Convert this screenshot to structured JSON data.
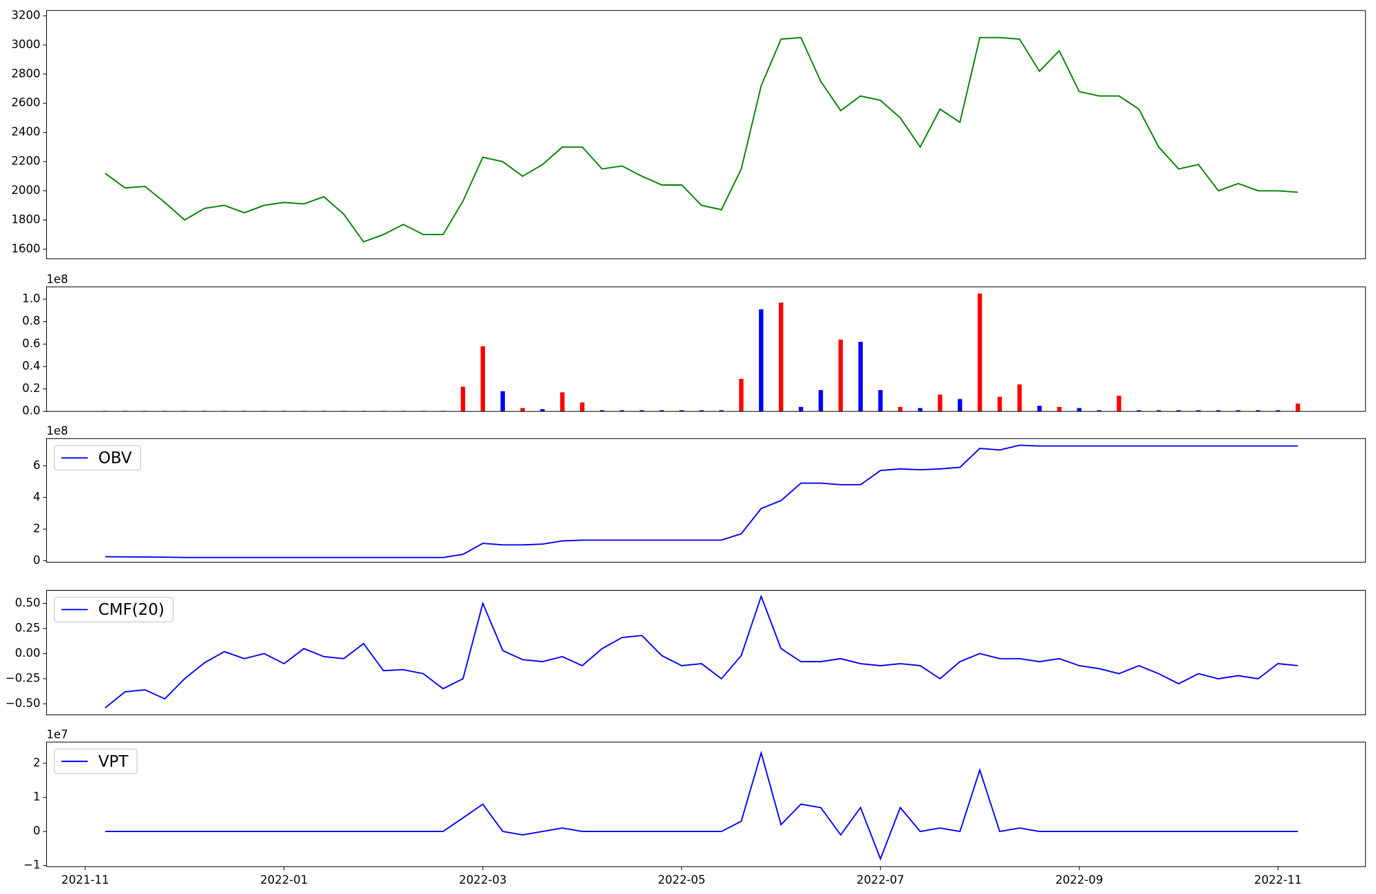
{
  "chart_data": [
    {
      "type": "line",
      "color": "green",
      "x": [
        0.2,
        0.4,
        0.6,
        0.8,
        1.0,
        1.2,
        1.4,
        1.6,
        1.8,
        2.0,
        2.2,
        2.4,
        2.6,
        2.8,
        3.0,
        3.2,
        3.4,
        3.6,
        3.8,
        4.0,
        4.2,
        4.4,
        4.6,
        4.8,
        5.0,
        5.2,
        5.4,
        5.6,
        5.8,
        6.0,
        6.2,
        6.4,
        6.6,
        6.8,
        7.0,
        7.2,
        7.4,
        7.6,
        7.8,
        8.0,
        8.2,
        8.4,
        8.6,
        8.8,
        9.0,
        9.2,
        9.4,
        9.6,
        9.8,
        10.0,
        10.2,
        10.4,
        10.6,
        10.8,
        11.0,
        11.2,
        11.4,
        11.6,
        11.8,
        12.0,
        12.2
      ],
      "values": [
        2120,
        2020,
        2030,
        1920,
        1800,
        1880,
        1900,
        1850,
        1900,
        1920,
        1910,
        1960,
        1840,
        1650,
        1700,
        1770,
        1700,
        1700,
        1930,
        2230,
        2200,
        2100,
        2180,
        2300,
        2300,
        2150,
        2170,
        2100,
        2040,
        2040,
        1900,
        1870,
        2150,
        2720,
        3040,
        3050,
        2750,
        2550,
        2650,
        2620,
        2500,
        2300,
        2560,
        2470,
        3050,
        3050,
        3040,
        2820,
        2960,
        2680,
        2650,
        2650,
        2560,
        2300,
        2150,
        2180,
        2000,
        2050,
        2000,
        2000,
        1990
      ],
      "xlim": [
        -0.39,
        12.88
      ],
      "ylim": [
        1534,
        3236
      ],
      "yticks": [
        1600,
        1800,
        2000,
        2200,
        2400,
        2600,
        2800,
        3000,
        3200
      ]
    },
    {
      "type": "bar",
      "y_offset_label": "1e8",
      "x": [
        0.2,
        0.4,
        0.6,
        0.8,
        1.0,
        1.2,
        1.4,
        1.6,
        1.8,
        2.0,
        2.2,
        2.4,
        2.6,
        2.8,
        3.0,
        3.2,
        3.4,
        3.6,
        3.8,
        4.0,
        4.2,
        4.4,
        4.6,
        4.8,
        5.0,
        5.2,
        5.4,
        5.6,
        5.8,
        6.0,
        6.2,
        6.4,
        6.6,
        6.8,
        7.0,
        7.2,
        7.4,
        7.6,
        7.8,
        8.0,
        8.2,
        8.4,
        8.6,
        8.8,
        9.0,
        9.2,
        9.4,
        9.6,
        9.8,
        10.0,
        10.2,
        10.4,
        10.6,
        10.8,
        11.0,
        11.2,
        11.4,
        11.6,
        11.8,
        12.0,
        12.2
      ],
      "values": [
        0.005,
        0.005,
        0.005,
        0.005,
        0.005,
        0.005,
        0.005,
        0.005,
        0.005,
        0.005,
        0.005,
        0.005,
        0.005,
        0.005,
        0.005,
        0.005,
        0.005,
        0.005,
        0.22,
        0.58,
        0.18,
        0.03,
        0.02,
        0.17,
        0.08,
        0.01,
        0.01,
        0.01,
        0.01,
        0.01,
        0.01,
        0.01,
        0.29,
        0.91,
        0.97,
        0.04,
        0.19,
        0.64,
        0.62,
        0.19,
        0.04,
        0.03,
        0.15,
        0.11,
        1.05,
        0.13,
        0.24,
        0.05,
        0.04,
        0.03,
        0.01,
        0.14,
        0.01,
        0.01,
        0.01,
        0.01,
        0.01,
        0.01,
        0.01,
        0.01,
        0.07
      ],
      "colors": [
        "red",
        "red",
        "red",
        "red",
        "red",
        "red",
        "red",
        "red",
        "red",
        "red",
        "red",
        "red",
        "red",
        "red",
        "red",
        "red",
        "red",
        "red",
        "red",
        "red",
        "blue",
        "red",
        "blue",
        "red",
        "red",
        "blue",
        "blue",
        "blue",
        "blue",
        "blue",
        "blue",
        "blue",
        "red",
        "blue",
        "red",
        "blue",
        "blue",
        "red",
        "blue",
        "blue",
        "red",
        "blue",
        "red",
        "blue",
        "red",
        "red",
        "red",
        "blue",
        "red",
        "blue",
        "blue",
        "red",
        "blue",
        "blue",
        "blue",
        "blue",
        "blue",
        "blue",
        "blue",
        "blue",
        "red"
      ],
      "xlim": [
        -0.39,
        12.88
      ],
      "ylim": [
        0,
        1.11
      ],
      "yticks": [
        {
          "value": 0,
          "label": "0.0"
        },
        0.2,
        0.4,
        0.6,
        0.8,
        {
          "value": 1,
          "label": "1.0"
        }
      ]
    },
    {
      "type": "line",
      "y_offset_label": "1e8",
      "legend": "upper left",
      "x": [
        0.2,
        0.4,
        0.6,
        0.8,
        1.0,
        1.2,
        1.4,
        1.6,
        1.8,
        2.0,
        2.2,
        2.4,
        2.6,
        2.8,
        3.0,
        3.2,
        3.4,
        3.6,
        3.8,
        4.0,
        4.2,
        4.4,
        4.6,
        4.8,
        5.0,
        5.2,
        5.4,
        5.6,
        5.8,
        6.0,
        6.2,
        6.4,
        6.6,
        6.8,
        7.0,
        7.2,
        7.4,
        7.6,
        7.8,
        8.0,
        8.2,
        8.4,
        8.6,
        8.8,
        9.0,
        9.2,
        9.4,
        9.6,
        9.8,
        10.0,
        10.2,
        10.4,
        10.6,
        10.8,
        11.0,
        11.2,
        11.4,
        11.6,
        11.8,
        12.0,
        12.2
      ],
      "series": [
        {
          "name": "OBV",
          "color": "blue",
          "values": [
            0.25,
            0.24,
            0.23,
            0.22,
            0.2,
            0.2,
            0.2,
            0.2,
            0.2,
            0.2,
            0.2,
            0.2,
            0.2,
            0.2,
            0.2,
            0.2,
            0.2,
            0.2,
            0.4,
            1.1,
            1.0,
            1.0,
            1.05,
            1.25,
            1.3,
            1.3,
            1.3,
            1.3,
            1.3,
            1.3,
            1.3,
            1.3,
            1.7,
            3.3,
            3.8,
            4.9,
            4.9,
            4.8,
            4.8,
            5.7,
            5.8,
            5.75,
            5.8,
            5.9,
            7.1,
            7.0,
            7.3,
            7.25,
            7.25,
            7.25,
            7.25,
            7.25,
            7.25,
            7.25,
            7.25,
            7.25,
            7.25,
            7.25,
            7.25,
            7.25,
            7.25
          ]
        }
      ],
      "xlim": [
        -0.39,
        12.88
      ],
      "ylim": [
        -0.1,
        7.72
      ],
      "yticks": [
        0,
        2,
        4,
        6
      ]
    },
    {
      "type": "line",
      "legend": "upper left",
      "x": [
        0.2,
        0.4,
        0.6,
        0.8,
        1.0,
        1.2,
        1.4,
        1.6,
        1.8,
        2.0,
        2.2,
        2.4,
        2.6,
        2.8,
        3.0,
        3.2,
        3.4,
        3.6,
        3.8,
        4.0,
        4.2,
        4.4,
        4.6,
        4.8,
        5.0,
        5.2,
        5.4,
        5.6,
        5.8,
        6.0,
        6.2,
        6.4,
        6.6,
        6.8,
        7.0,
        7.2,
        7.4,
        7.6,
        7.8,
        8.0,
        8.2,
        8.4,
        8.6,
        8.8,
        9.0,
        9.2,
        9.4,
        9.6,
        9.8,
        10.0,
        10.2,
        10.4,
        10.6,
        10.8,
        11.0,
        11.2,
        11.4,
        11.6,
        11.8,
        12.0,
        12.2
      ],
      "series": [
        {
          "name": "CMF(20)",
          "color": "blue",
          "values": [
            -0.54,
            -0.38,
            -0.36,
            -0.45,
            -0.25,
            -0.09,
            0.02,
            -0.05,
            0,
            -0.1,
            0.05,
            -0.03,
            -0.05,
            0.1,
            -0.17,
            -0.16,
            -0.2,
            -0.35,
            -0.25,
            0.5,
            0.03,
            -0.06,
            -0.08,
            -0.03,
            -0.12,
            0.05,
            0.16,
            0.18,
            -0.02,
            -0.12,
            -0.1,
            -0.25,
            -0.02,
            0.57,
            0.05,
            -0.08,
            -0.08,
            -0.05,
            -0.1,
            -0.12,
            -0.1,
            -0.12,
            -0.25,
            -0.08,
            0,
            -0.05,
            -0.05,
            -0.08,
            -0.05,
            -0.12,
            -0.15,
            -0.2,
            -0.12,
            -0.2,
            -0.3,
            -0.2,
            -0.25,
            -0.22,
            -0.25,
            -0.1,
            -0.12
          ]
        }
      ],
      "xlim": [
        -0.39,
        12.88
      ],
      "ylim": [
        -0.61,
        0.63
      ],
      "yticks": [
        {
          "value": -0.5,
          "label": "−0.50"
        },
        {
          "value": -0.25,
          "label": "−0.25"
        },
        {
          "value": 0,
          "label": "0.00"
        },
        0.25,
        {
          "value": 0.5,
          "label": "0.50"
        }
      ]
    },
    {
      "type": "line",
      "y_offset_label": "1e7",
      "legend": "upper left",
      "x": [
        0.2,
        0.4,
        0.6,
        0.8,
        1.0,
        1.2,
        1.4,
        1.6,
        1.8,
        2.0,
        2.2,
        2.4,
        2.6,
        2.8,
        3.0,
        3.2,
        3.4,
        3.6,
        3.8,
        4.0,
        4.2,
        4.4,
        4.6,
        4.8,
        5.0,
        5.2,
        5.4,
        5.6,
        5.8,
        6.0,
        6.2,
        6.4,
        6.6,
        6.8,
        7.0,
        7.2,
        7.4,
        7.6,
        7.8,
        8.0,
        8.2,
        8.4,
        8.6,
        8.8,
        9.0,
        9.2,
        9.4,
        9.6,
        9.8,
        10.0,
        10.2,
        10.4,
        10.6,
        10.8,
        11.0,
        11.2,
        11.4,
        11.6,
        11.8,
        12.0,
        12.2
      ],
      "series": [
        {
          "name": "VPT",
          "color": "blue",
          "values": [
            0,
            0,
            0,
            0,
            0,
            0,
            0,
            0,
            0,
            0,
            0,
            0,
            0,
            0,
            0,
            0,
            0,
            0,
            0.4,
            0.8,
            0,
            -0.1,
            0,
            0.1,
            0,
            0,
            0,
            0,
            0,
            0,
            0,
            0,
            0.3,
            2.3,
            0.2,
            0.8,
            0.7,
            -0.1,
            0.7,
            -0.8,
            0.7,
            0,
            0.1,
            0,
            1.8,
            0,
            0.1,
            0,
            0,
            0,
            0,
            0,
            0,
            0,
            0,
            0,
            0,
            0,
            0,
            0,
            0
          ]
        }
      ],
      "xlim": [
        -0.39,
        12.88
      ],
      "ylim": [
        -1.03,
        2.62
      ],
      "yticks": [
        {
          "value": -1,
          "label": "−1"
        },
        0,
        1,
        2
      ],
      "xticks": [
        {
          "value": 0,
          "label": "2021-11"
        },
        {
          "value": 2,
          "label": "2022-01"
        },
        {
          "value": 4,
          "label": "2022-03"
        },
        {
          "value": 6,
          "label": "2022-05"
        },
        {
          "value": 8,
          "label": "2022-07"
        },
        {
          "value": 10,
          "label": "2022-09"
        },
        {
          "value": 12,
          "label": "2022-11"
        }
      ]
    }
  ]
}
